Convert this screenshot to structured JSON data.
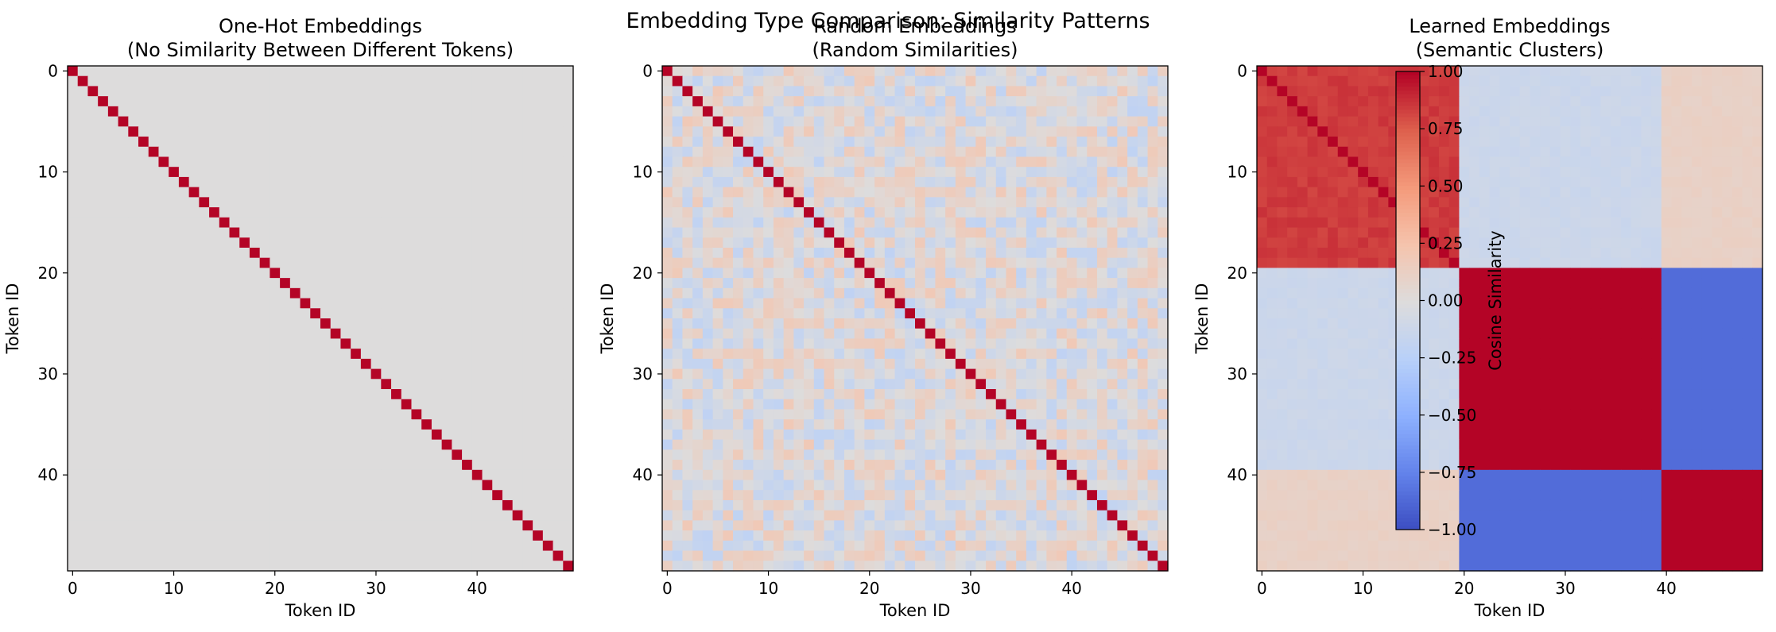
{
  "suptitle": "Embedding Type Comparison: Similarity Patterns",
  "colors": {
    "diagonal": "#b40426",
    "neutral": "#dddcdc",
    "colormap": "coolwarm"
  },
  "chart_data": [
    {
      "type": "heatmap",
      "title_line1": "One-Hot Embeddings",
      "title_line2": "(No Similarity Between Different Tokens)",
      "xlabel": "Token ID",
      "ylabel": "Token ID",
      "n_tokens": 50,
      "xticks": [
        0,
        10,
        20,
        30,
        40
      ],
      "yticks": [
        0,
        10,
        20,
        30,
        40
      ],
      "pattern": "identity",
      "diagonal_value": 1.0,
      "off_diagonal_value": 0.0
    },
    {
      "type": "heatmap",
      "title_line1": "Random Embeddings",
      "title_line2": "(Random Similarities)",
      "xlabel": "Token ID",
      "ylabel": "Token ID",
      "n_tokens": 50,
      "xticks": [
        0,
        10,
        20,
        30,
        40
      ],
      "yticks": [
        0,
        10,
        20,
        30,
        40
      ],
      "pattern": "random",
      "diagonal_value": 1.0,
      "off_diagonal_range": [
        -0.2,
        0.2
      ]
    },
    {
      "type": "heatmap",
      "title_line1": "Learned Embeddings",
      "title_line2": "(Semantic Clusters)",
      "xlabel": "Token ID",
      "ylabel": "Token ID",
      "n_tokens": 50,
      "xticks": [
        0,
        10,
        20,
        30,
        40
      ],
      "yticks": [
        0,
        10,
        20,
        30,
        40
      ],
      "pattern": "blocks",
      "diagonal_value": 1.0,
      "cluster_bounds": [
        0,
        20,
        40,
        50
      ],
      "block_values": [
        [
          0.85,
          -0.12,
          0.12
        ],
        [
          -0.12,
          1.0,
          -0.85
        ],
        [
          0.12,
          -0.85,
          1.0
        ]
      ],
      "colorbar": {
        "label": "Cosine Similarity",
        "range": [
          -1.0,
          1.0
        ],
        "ticks": [
          "1.00",
          "0.75",
          "0.50",
          "0.25",
          "0.00",
          "−0.25",
          "−0.50",
          "−0.75",
          "−1.00"
        ],
        "tick_values": [
          1.0,
          0.75,
          0.5,
          0.25,
          0.0,
          -0.25,
          -0.5,
          -0.75,
          -1.0
        ]
      }
    }
  ]
}
